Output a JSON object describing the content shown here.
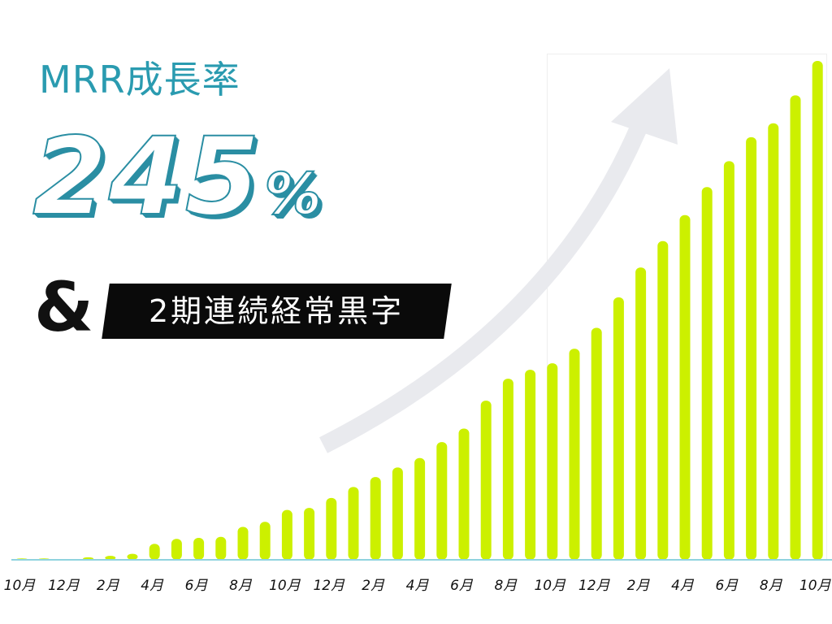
{
  "headline": "MRR成長率",
  "big_number": {
    "value": "245",
    "unit": "%"
  },
  "ampersand": "&",
  "badge": "2期連続経常黒字",
  "colors": {
    "bar": "#ccf000",
    "baseline": "#8fd3df",
    "headline": "#2a9bb0",
    "number_outline": "#2a8ea3",
    "badge_bg": "#0a0a0a",
    "arrow": "#e9eaee"
  },
  "icons": {
    "trend_arrow": "upward-curved-arrow-icon"
  },
  "chart_data": {
    "type": "bar",
    "title": "",
    "xlabel": "",
    "ylabel": "",
    "grid": false,
    "legend": "none",
    "x_tick_labels": [
      "10月",
      "12月",
      "2月",
      "4月",
      "6月",
      "8月",
      "10月",
      "12月",
      "2月",
      "4月",
      "6月",
      "8月",
      "10月",
      "12月",
      "2月",
      "4月",
      "6月",
      "8月",
      "10月"
    ],
    "values": [
      0.3,
      0.3,
      0,
      0.5,
      0.8,
      1.2,
      3.2,
      4.2,
      4.4,
      4.6,
      6.6,
      7.6,
      10,
      10.4,
      12.4,
      14.6,
      16.6,
      18.5,
      20.4,
      23.6,
      26.3,
      31.9,
      36.3,
      38.1,
      39.4,
      42.3,
      46.5,
      52.6,
      58.6,
      63.9,
      69.1,
      74.7,
      79.9,
      84.7,
      87.5,
      93.1,
      100
    ],
    "ylim": [
      0,
      100
    ]
  }
}
